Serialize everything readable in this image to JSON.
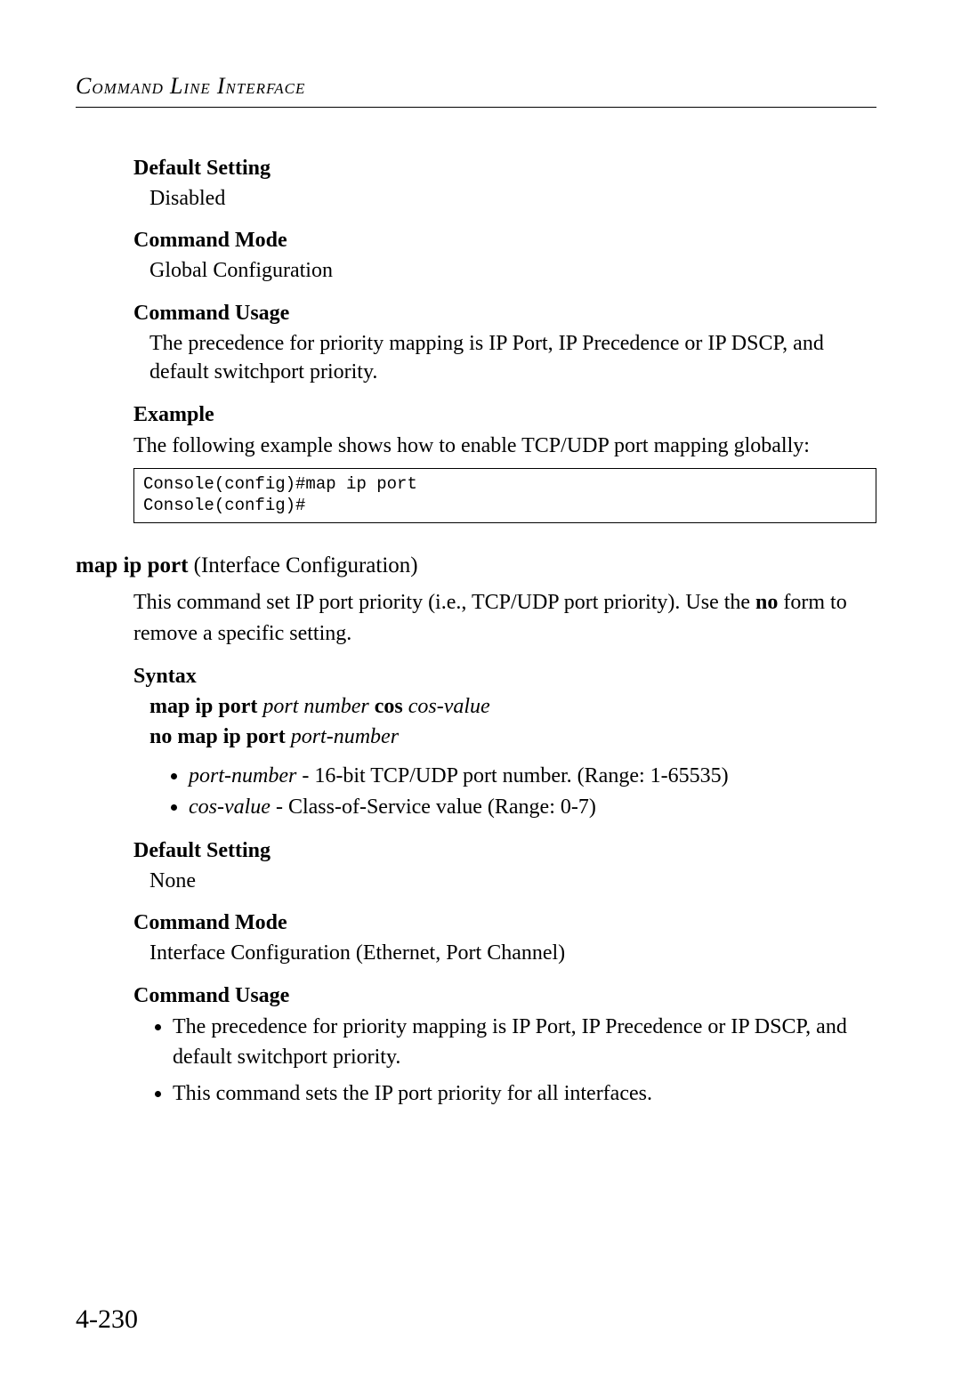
{
  "header": {
    "title_html": "Command Line Interface"
  },
  "sec1": {
    "h_default": "Default Setting",
    "default_val": "Disabled",
    "h_mode": "Command Mode",
    "mode_val": "Global Configuration",
    "h_usage": "Command Usage",
    "usage_text": "The precedence for priority mapping is IP Port, IP Precedence or IP DSCP, and default switchport priority.",
    "h_example": "Example",
    "example_intro": "The following example shows how to enable TCP/UDP port mapping globally:",
    "code": "Console(config)#map ip port\nConsole(config)#"
  },
  "cmd": {
    "name": "map ip port",
    "context": " (Interface Configuration)",
    "desc_pre": "This command set IP port priority (i.e., TCP/UDP port priority). Use the ",
    "desc_bold": "no",
    "desc_post": " form to remove a specific setting.",
    "h_syntax": "Syntax",
    "syntax1": {
      "b1": "map ip port ",
      "i1": "port number",
      "b2": " cos ",
      "i2": "cos-value"
    },
    "syntax2": {
      "b1": "no map ip port ",
      "i1": "port-number"
    },
    "params": [
      {
        "ital": "port-number",
        "rest": " - 16-bit TCP/UDP port number. (Range: 1-65535)"
      },
      {
        "ital": "cos-value",
        "rest": " - Class-of-Service value (Range: 0-7)"
      }
    ],
    "h_default": "Default Setting",
    "default_val": "None",
    "h_mode": "Command Mode",
    "mode_val": "Interface Configuration (Ethernet, Port Channel)",
    "h_usage": "Command Usage",
    "usage_items": [
      "The precedence for priority mapping is IP Port, IP Precedence or IP DSCP, and default switchport priority.",
      "This command sets the IP port priority for all interfaces."
    ]
  },
  "page_number": "4-230"
}
